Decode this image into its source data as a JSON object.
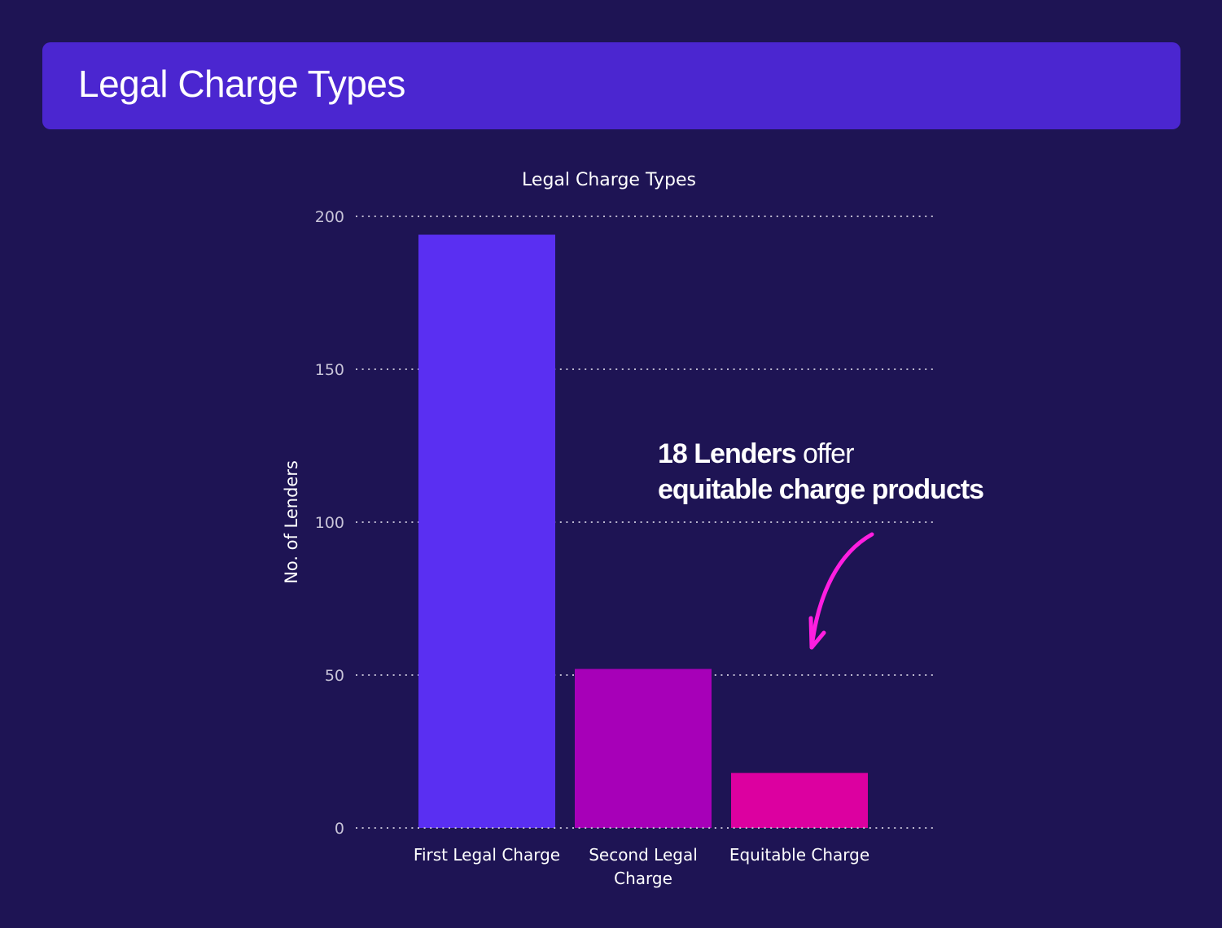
{
  "header": {
    "title": "Legal Charge Types"
  },
  "annotation": {
    "line1_bold": "18 Lenders",
    "line1_rest": "offer",
    "line2_bold": "equitable charge products",
    "arrow_color": "#ff1ee0"
  },
  "colors": {
    "background": "#1e1454",
    "header": "#4b26d0",
    "bars": [
      "#5a2ff2",
      "#a700b8",
      "#dc00a0"
    ]
  },
  "chart_data": {
    "type": "bar",
    "title": "Legal Charge Types",
    "xlabel": "",
    "ylabel": "No. of Lenders",
    "categories": [
      "First Legal Charge",
      "Second Legal Charge",
      "Equitable Charge"
    ],
    "category_lines": [
      [
        "First Legal Charge"
      ],
      [
        "Second Legal",
        "Charge"
      ],
      [
        "Equitable Charge"
      ]
    ],
    "values": [
      194,
      52,
      18
    ],
    "ylim": [
      0,
      200
    ],
    "yticks": [
      0,
      50,
      100,
      150,
      200
    ],
    "grid": true,
    "grid_style": "dotted",
    "legend": "none"
  }
}
